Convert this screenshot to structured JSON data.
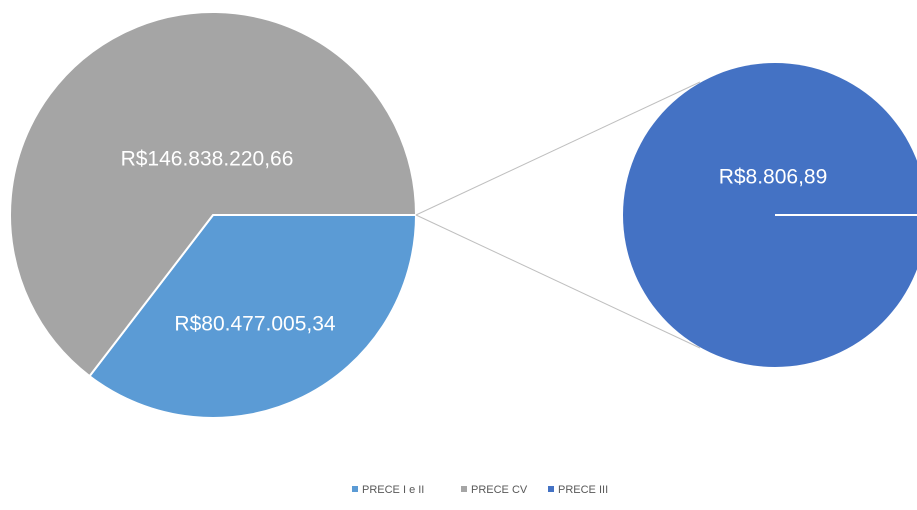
{
  "chart_data": {
    "type": "pie-of-pie",
    "categories": [
      "PRECE I e II",
      "PRECE CV",
      "PRECE III"
    ],
    "values": [
      80477005.34,
      146838220.66,
      8806.89
    ],
    "value_labels": [
      "R$80.477.005,34",
      "R$146.838.220,66",
      "R$8.806,89"
    ],
    "colors": [
      "#5b9bd5",
      "#a5a5a5",
      "#4472c4"
    ],
    "legend": "bottom"
  }
}
